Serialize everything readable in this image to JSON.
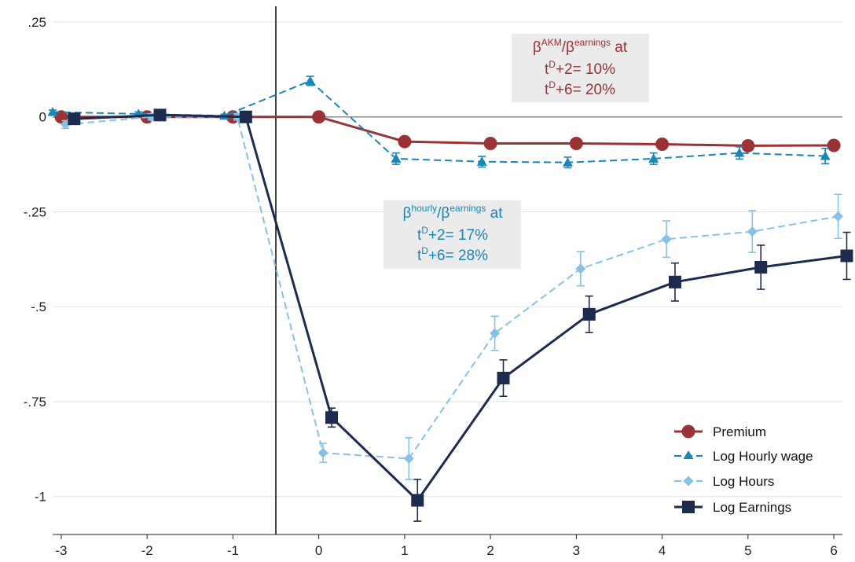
{
  "chart_data": {
    "type": "line",
    "x": [
      -3,
      -2,
      -1,
      0,
      1,
      2,
      3,
      4,
      5,
      6
    ],
    "xlim": [
      -3.1,
      6.1
    ],
    "ylim": [
      -1.1,
      0.25
    ],
    "x_ticks": [
      "-3",
      "-2",
      "-1",
      "0",
      "1",
      "2",
      "3",
      "4",
      "5",
      "6"
    ],
    "y_ticks": [
      {
        "value": 0.25,
        "label": ".25"
      },
      {
        "value": 0,
        "label": "0"
      },
      {
        "value": -0.25,
        "label": "-.25"
      },
      {
        "value": -0.5,
        "label": "-.5"
      },
      {
        "value": -0.75,
        "label": "-.75"
      },
      {
        "value": -1,
        "label": "-1"
      }
    ],
    "grid": true,
    "event_line_x": -0.5,
    "legend_position": "bottom-right",
    "series": [
      {
        "name": "Premium",
        "color": "#9b3235",
        "marker": "circle",
        "dashed": false,
        "x_offset": 0,
        "values": [
          0.0,
          0.0,
          0.0,
          0.0,
          -0.065,
          -0.07,
          -0.07,
          -0.072,
          -0.076,
          -0.075
        ],
        "errors": [
          0,
          0,
          0,
          0,
          0,
          0,
          0,
          0,
          0,
          0
        ]
      },
      {
        "name": "Log Hourly wage",
        "color": "#1a86b8",
        "marker": "triangle",
        "dashed": true,
        "x_offset": -0.1,
        "values": [
          0.013,
          0.008,
          0.003,
          0.095,
          -0.11,
          -0.118,
          -0.12,
          -0.11,
          -0.095,
          -0.103
        ],
        "errors": [
          0.005,
          0.005,
          0.004,
          0.012,
          0.015,
          0.014,
          0.014,
          0.015,
          0.016,
          0.02
        ]
      },
      {
        "name": "Log Hours",
        "color": "#86c1e6",
        "marker": "diamond",
        "dashed": true,
        "x_offset": 0.05,
        "values": [
          -0.02,
          0.0,
          0.0,
          -0.885,
          -0.9,
          -0.57,
          -0.4,
          -0.322,
          -0.302,
          -0.262
        ],
        "errors": [
          0.01,
          0.008,
          0.008,
          0.025,
          0.055,
          0.045,
          0.045,
          0.048,
          0.055,
          0.058
        ]
      },
      {
        "name": "Log Earnings",
        "color": "#1d2b4f",
        "marker": "square",
        "dashed": false,
        "x_offset": 0.15,
        "values": [
          -0.005,
          0.005,
          0.0,
          -0.792,
          -1.01,
          -0.688,
          -0.52,
          -0.435,
          -0.396,
          -0.366
        ],
        "errors": [
          0.008,
          0.006,
          0.006,
          0.025,
          0.055,
          0.048,
          0.048,
          0.05,
          0.058,
          0.062
        ]
      }
    ],
    "annotations": [
      {
        "color": "#9b3235",
        "line1": {
          "prefix": "β",
          "sup1": "AKM",
          "mid": "/β",
          "sup2": "earnings",
          "suffix": " at"
        },
        "line2": {
          "prefix": "t",
          "sup": "D",
          "suffix": "+2= 10%"
        },
        "line3": {
          "prefix": "t",
          "sup": "D",
          "suffix": "+6= 20%"
        }
      },
      {
        "color": "#1a86b8",
        "line1": {
          "prefix": "β",
          "sup1": "hourly",
          "mid": "/β",
          "sup2": "earnings",
          "suffix": " at"
        },
        "line2": {
          "prefix": "t",
          "sup": "D",
          "suffix": "+2= 17%"
        },
        "line3": {
          "prefix": "t",
          "sup": "D",
          "suffix": "+6= 28%"
        }
      }
    ]
  }
}
